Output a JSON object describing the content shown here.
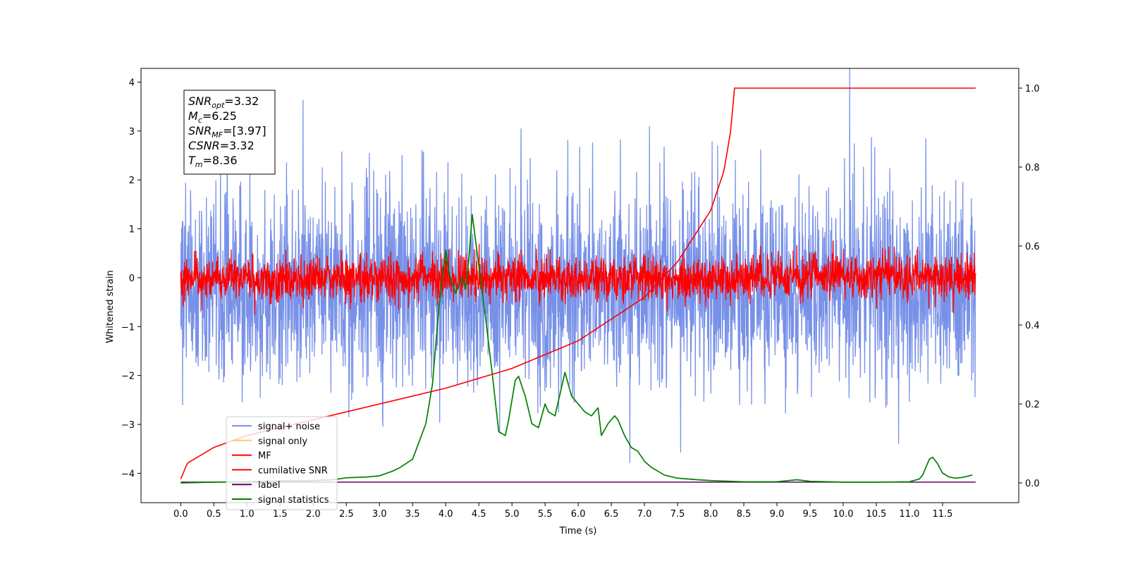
{
  "chart_data": {
    "type": "line",
    "title": "",
    "xlabel": "Time (s)",
    "ylabel": "Whitened strain",
    "xlim": [
      -0.6,
      12.65
    ],
    "ylim": [
      -4.6,
      4.28
    ],
    "y2lim": [
      -0.05,
      1.05
    ],
    "x_ticks": [
      "0.0",
      "0.5",
      "1.0",
      "1.5",
      "2.0",
      "2.5",
      "3.0",
      "3.5",
      "4.0",
      "4.5",
      "5.0",
      "5.5",
      "6.0",
      "6.5",
      "7.0",
      "7.5",
      "8.0",
      "8.5",
      "9.0",
      "9.5",
      "10.0",
      "10.5",
      "11.0",
      "11.5"
    ],
    "y_ticks": [
      "4",
      "3",
      "2",
      "1",
      "0",
      "−1",
      "−2",
      "−3",
      "−4"
    ],
    "y2_ticks": [
      "1.0",
      "0.8",
      "0.6",
      "0.4",
      "0.2",
      "0.0"
    ],
    "duration": 12.0,
    "legend": {
      "position": "lower-left",
      "entries": [
        {
          "label": "signal+ noise",
          "color": "#7891e8"
        },
        {
          "label": "signal only",
          "color": "#ffc870"
        },
        {
          "label": "MF",
          "color": "#ff0000"
        },
        {
          "label": "cumilative SNR",
          "color": "#ff0000"
        },
        {
          "label": "label",
          "color": "#660066"
        },
        {
          "label": "signal statistics",
          "color": "#008000"
        }
      ]
    },
    "info_box": {
      "lines": [
        {
          "main": "SNR",
          "sub": "opt",
          "value": "=3.32"
        },
        {
          "main": "M",
          "sub": "c",
          "value": "=6.25"
        },
        {
          "main": "SNR",
          "sub": "MF",
          "value": "=[3.97]"
        },
        {
          "main": "CSNR",
          "sub": "",
          "value": "=3.32"
        },
        {
          "main": "T",
          "sub": "m",
          "value": "=8.36"
        }
      ]
    },
    "series": [
      {
        "name": "signal+ noise",
        "axis": "left",
        "color": "#7891e8",
        "noise_mean": -0.22,
        "noise_std": 1.02
      },
      {
        "name": "MF",
        "axis": "left",
        "color": "#ff0000",
        "noise_mean": 0.0,
        "noise_std": 0.22
      },
      {
        "name": "cumilative SNR",
        "axis": "right",
        "color": "#ff0000",
        "merger_time": 8.36,
        "x": [
          0.0,
          0.1,
          0.5,
          1.0,
          2.0,
          3.0,
          4.0,
          5.0,
          6.0,
          7.0,
          7.5,
          8.0,
          8.2,
          8.3,
          8.36,
          12.0
        ],
        "y": [
          0.01,
          0.05,
          0.09,
          0.12,
          0.16,
          0.2,
          0.24,
          0.29,
          0.36,
          0.47,
          0.56,
          0.69,
          0.79,
          0.89,
          1.0,
          1.0
        ]
      },
      {
        "name": "label",
        "axis": "right",
        "color": "#660066",
        "x": [
          0.0,
          12.0
        ],
        "y": [
          0.002,
          0.002
        ]
      },
      {
        "name": "signal statistics",
        "axis": "right",
        "color": "#008000",
        "x": [
          0.0,
          0.5,
          1.0,
          1.5,
          2.0,
          2.3,
          2.5,
          2.8,
          3.0,
          3.2,
          3.3,
          3.5,
          3.7,
          3.8,
          3.9,
          4.0,
          4.05,
          4.15,
          4.25,
          4.3,
          4.35,
          4.4,
          4.5,
          4.6,
          4.7,
          4.8,
          4.9,
          4.95,
          5.05,
          5.1,
          5.2,
          5.3,
          5.4,
          5.5,
          5.55,
          5.65,
          5.8,
          5.9,
          6.0,
          6.1,
          6.2,
          6.3,
          6.35,
          6.45,
          6.55,
          6.6,
          6.7,
          6.8,
          6.9,
          7.0,
          7.1,
          7.3,
          7.5,
          7.8,
          8.0,
          8.5,
          9.0,
          9.3,
          9.5,
          10.0,
          10.5,
          11.0,
          11.15,
          11.2,
          11.3,
          11.35,
          11.42,
          11.5,
          11.6,
          11.7,
          11.8,
          11.9,
          11.95
        ],
        "y": [
          0.0,
          0.002,
          0.003,
          0.005,
          0.006,
          0.008,
          0.013,
          0.015,
          0.018,
          0.03,
          0.038,
          0.06,
          0.15,
          0.25,
          0.45,
          0.59,
          0.53,
          0.48,
          0.52,
          0.49,
          0.57,
          0.68,
          0.55,
          0.42,
          0.28,
          0.13,
          0.12,
          0.16,
          0.26,
          0.27,
          0.22,
          0.15,
          0.14,
          0.2,
          0.18,
          0.17,
          0.28,
          0.22,
          0.2,
          0.18,
          0.17,
          0.19,
          0.12,
          0.15,
          0.17,
          0.16,
          0.12,
          0.09,
          0.08,
          0.055,
          0.04,
          0.02,
          0.012,
          0.008,
          0.006,
          0.003,
          0.003,
          0.008,
          0.004,
          0.002,
          0.002,
          0.003,
          0.01,
          0.02,
          0.06,
          0.065,
          0.05,
          0.025,
          0.015,
          0.012,
          0.014,
          0.018,
          0.02
        ]
      }
    ]
  }
}
